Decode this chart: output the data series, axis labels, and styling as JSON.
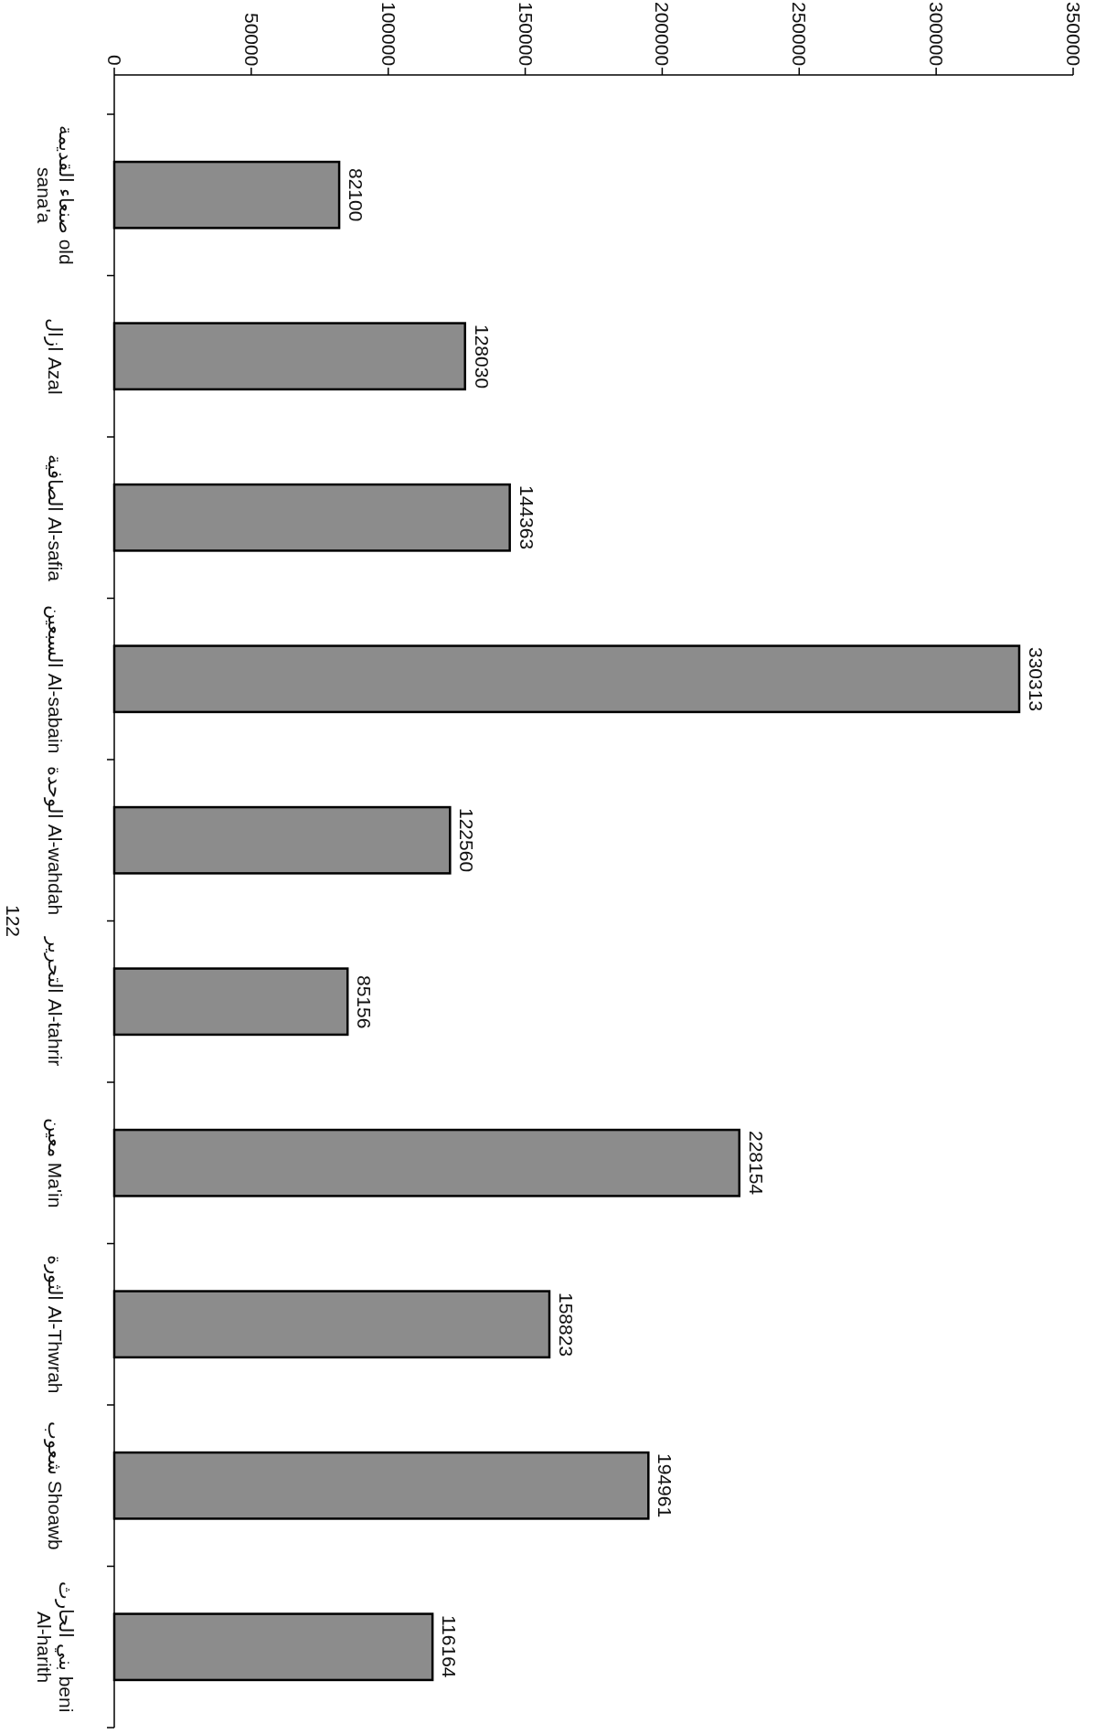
{
  "chart_data": {
    "type": "bar",
    "orientation": "horizontal",
    "categories": [
      "صنعاء القديمة old sana'a",
      "ازال Azal",
      "الصافية Al-safia",
      "السبعين Al-sabain",
      "الوحدة Al-wahdah",
      "التحرير Al-tahrir",
      "معين Ma'in",
      "الثورة Al-Thwrah",
      "شعوب Shoawb",
      "بني الحارث beni Al-harith"
    ],
    "values": [
      82100,
      128030,
      144363,
      330313,
      122560,
      85156,
      228154,
      158823,
      194961,
      116164
    ],
    "color": "#8c8c8c",
    "xlim": [
      0,
      350000
    ],
    "xticks": [
      0,
      50000,
      100000,
      150000,
      200000,
      250000,
      300000,
      350000
    ],
    "data_labels": true,
    "grid": false,
    "annotations": [
      "122"
    ]
  }
}
